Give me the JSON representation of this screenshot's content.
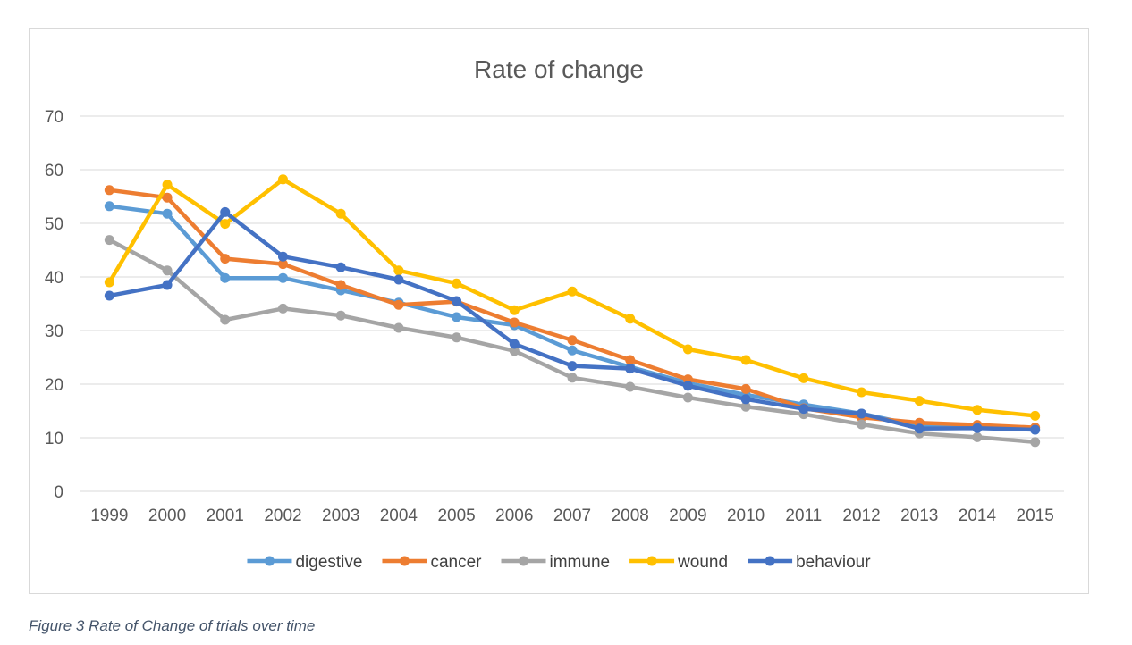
{
  "chart_data": {
    "type": "line",
    "title": "Rate of change",
    "xlabel": "",
    "ylabel": "",
    "ylim": [
      0,
      70
    ],
    "yticks": [
      0,
      10,
      20,
      30,
      40,
      50,
      60,
      70
    ],
    "grid": true,
    "legend_position": "bottom",
    "categories": [
      "1999",
      "2000",
      "2001",
      "2002",
      "2003",
      "2004",
      "2005",
      "2006",
      "2007",
      "2008",
      "2009",
      "2010",
      "2011",
      "2012",
      "2013",
      "2014",
      "2015"
    ],
    "series": [
      {
        "name": "digestive",
        "color": "#5b9bd5",
        "values": [
          53.2,
          51.8,
          39.8,
          39.8,
          37.5,
          35.2,
          32.5,
          31.0,
          26.3,
          23.2,
          20.2,
          18.0,
          16.2,
          14.5,
          12.2,
          12.0,
          11.5
        ]
      },
      {
        "name": "cancer",
        "color": "#ed7d31",
        "values": [
          56.2,
          54.8,
          43.4,
          42.4,
          38.5,
          34.8,
          35.4,
          31.5,
          28.2,
          24.5,
          20.9,
          19.1,
          15.5,
          13.8,
          12.8,
          12.4,
          11.9
        ]
      },
      {
        "name": "immune",
        "color": "#a5a5a5",
        "values": [
          46.9,
          41.2,
          32.0,
          34.1,
          32.8,
          30.5,
          28.7,
          26.2,
          21.2,
          19.5,
          17.5,
          15.8,
          14.4,
          12.5,
          10.8,
          10.1,
          9.2
        ]
      },
      {
        "name": "wound",
        "color": "#ffc000",
        "values": [
          39.0,
          57.2,
          49.9,
          58.2,
          51.8,
          41.2,
          38.8,
          33.8,
          37.3,
          32.2,
          26.5,
          24.5,
          21.1,
          18.5,
          16.9,
          15.2,
          14.1
        ]
      },
      {
        "name": "behaviour",
        "color": "#4472c4",
        "values": [
          36.5,
          38.5,
          52.1,
          43.8,
          41.8,
          39.5,
          35.5,
          27.5,
          23.4,
          22.9,
          19.7,
          17.2,
          15.4,
          14.5,
          11.7,
          11.8,
          11.5
        ]
      }
    ]
  },
  "caption": "Figure 3 Rate of Change of trials over time"
}
